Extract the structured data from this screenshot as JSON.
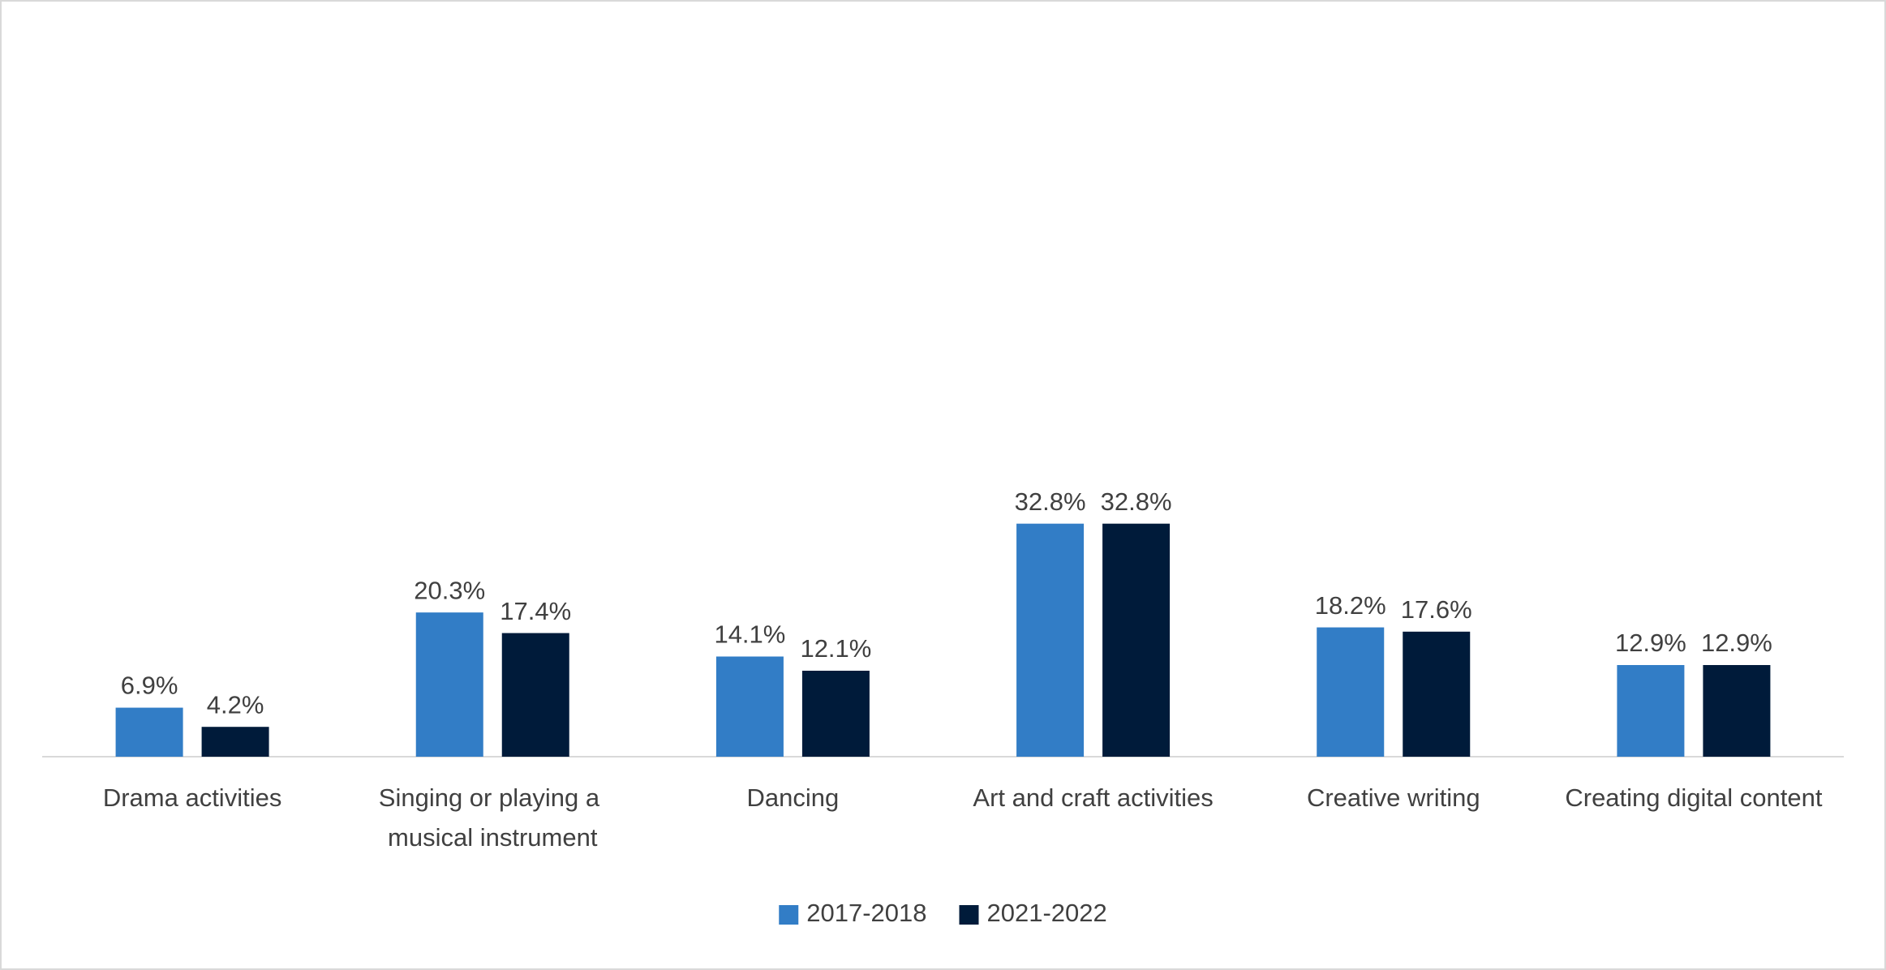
{
  "chart_data": {
    "type": "bar",
    "categories": [
      "Drama activities",
      "Singing or playing a musical instrument",
      "Dancing",
      "Art and craft activities",
      "Creative writing",
      "Creating digital content"
    ],
    "series": [
      {
        "name": "2017-2018",
        "color": "#327dc6",
        "values": [
          6.9,
          20.3,
          14.1,
          32.8,
          18.2,
          12.9
        ],
        "value_labels": [
          "6.9%",
          "20.3%",
          "14.1%",
          "32.8%",
          "18.2%",
          "12.9%"
        ]
      },
      {
        "name": "2021-2022",
        "color": "#001b3a",
        "values": [
          4.2,
          17.4,
          12.1,
          32.8,
          17.6,
          12.9
        ],
        "value_labels": [
          "4.2%",
          "17.4%",
          "12.1%",
          "32.8%",
          "17.6%",
          "12.9%"
        ]
      }
    ],
    "ylim": [
      0,
      100
    ],
    "legend": "bottom"
  }
}
